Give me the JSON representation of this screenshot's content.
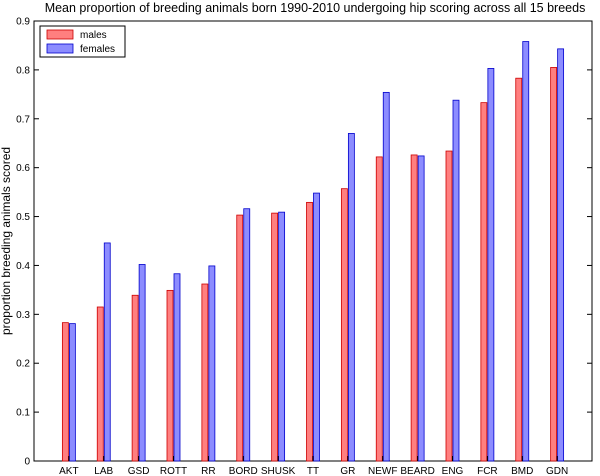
{
  "chart_data": {
    "type": "bar",
    "title": "Mean proportion of breeding animals born 1990-2010 undergoing hip scoring across all 15 breeds",
    "xlabel": "",
    "ylabel": "proportion breeding animals scored",
    "ylim": [
      0,
      0.9
    ],
    "yticks": [
      "0",
      "0.1",
      "0.2",
      "0.3",
      "0.4",
      "0.5",
      "0.6",
      "0.7",
      "0.8",
      "0.9"
    ],
    "grid": false,
    "legend_position": "top-left",
    "categories": [
      "AKT",
      "LAB",
      "GSD",
      "ROTT",
      "RR",
      "BORD",
      "SHUSK",
      "TT",
      "GR",
      "NEWF",
      "BEARD",
      "ENG",
      "FCR",
      "BMD",
      "GDN"
    ],
    "series": [
      {
        "name": "males",
        "color": "#ff7f7f",
        "edge": "#cc0000",
        "values": [
          0.283,
          0.315,
          0.339,
          0.349,
          0.362,
          0.503,
          0.507,
          0.529,
          0.557,
          0.622,
          0.626,
          0.634,
          0.733,
          0.783,
          0.805
        ]
      },
      {
        "name": "females",
        "color": "#8c8cff",
        "edge": "#0000cc",
        "values": [
          0.281,
          0.446,
          0.402,
          0.383,
          0.399,
          0.516,
          0.509,
          0.548,
          0.67,
          0.754,
          0.624,
          0.738,
          0.803,
          0.858,
          0.843
        ]
      }
    ]
  }
}
